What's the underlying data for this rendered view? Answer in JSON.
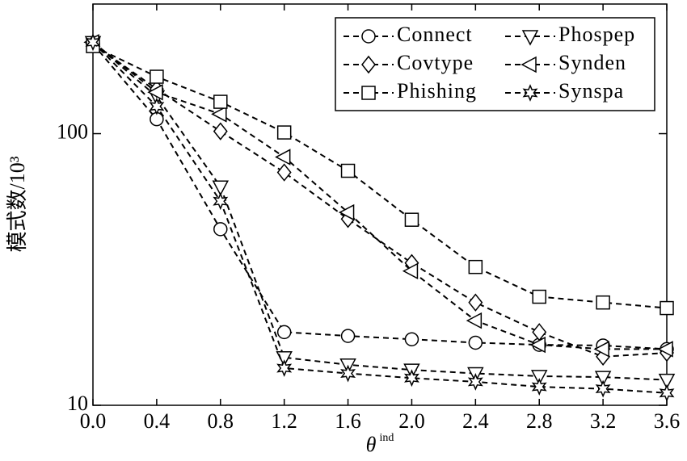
{
  "chart_data": {
    "type": "line",
    "xlabel": "θ",
    "xlabel_superscript": "ind",
    "ylabel": "模式数/10³",
    "x": [
      0.0,
      0.4,
      0.8,
      1.2,
      1.6,
      2.0,
      2.4,
      2.8,
      3.2,
      3.6
    ],
    "xlim": [
      0.0,
      3.6
    ],
    "xticks": [
      {
        "value": 0.0,
        "label": "0.0"
      },
      0.4,
      0.8,
      1.2,
      1.6,
      {
        "value": 2.0,
        "label": "2.0"
      },
      2.4,
      2.8,
      3.2,
      3.6
    ],
    "ylim": [
      10,
      300
    ],
    "yticks": [
      10,
      100
    ],
    "log_y": true,
    "legend": "upper right",
    "series": [
      {
        "name": "Connect",
        "marker": "circle",
        "color": "#000000",
        "values": [
          214,
          113,
          44.5,
          18.6,
          18,
          17.5,
          17,
          16.7,
          16.6,
          16.1
        ]
      },
      {
        "name": "Phospep",
        "marker": "triangle-down",
        "color": "#000000",
        "values": [
          217,
          137,
          63.8,
          15,
          14.1,
          13.5,
          13.1,
          12.8,
          12.7,
          12.4
        ]
      },
      {
        "name": "Covtype",
        "marker": "diamond",
        "color": "#000000",
        "values": [
          214,
          146,
          102,
          72,
          48.5,
          33.4,
          23.9,
          18.6,
          15.1,
          15.6
        ]
      },
      {
        "name": "Synden",
        "marker": "triangle-left",
        "color": "#000000",
        "values": [
          217,
          142,
          118,
          82,
          51.3,
          31.2,
          20.5,
          16.7,
          16.1,
          16.1
        ]
      },
      {
        "name": "Phishing",
        "marker": "square",
        "color": "#000000",
        "values": [
          210,
          162,
          131,
          101,
          73,
          48.2,
          32.3,
          25.1,
          23.9,
          22.8
        ]
      },
      {
        "name": "Synspa",
        "marker": "star",
        "color": "#000000",
        "values": [
          217,
          126,
          56.4,
          13.7,
          13.1,
          12.6,
          12.2,
          11.7,
          11.5,
          11.1
        ]
      }
    ]
  }
}
